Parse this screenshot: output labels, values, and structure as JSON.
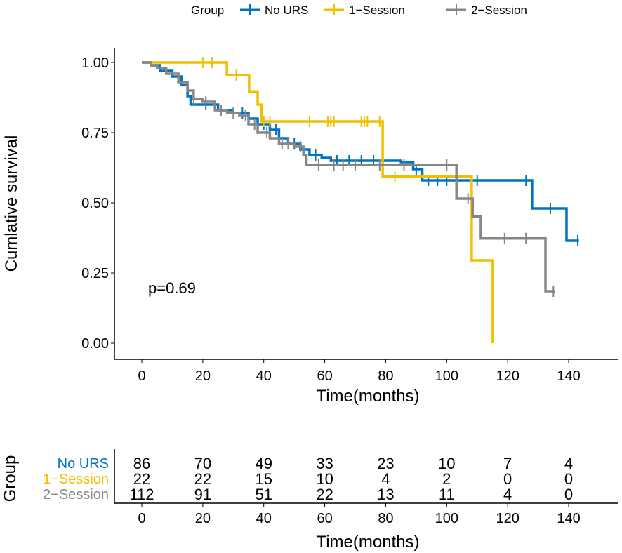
{
  "chart_data": {
    "type": "line",
    "subtype": "kaplan-meier",
    "xlabel": "Time(months)",
    "ylabel": "Cumlative survival",
    "xlim": [
      -8,
      155
    ],
    "ylim": [
      -0.05,
      1.05
    ],
    "xticks": [
      0,
      20,
      40,
      60,
      80,
      100,
      120,
      140
    ],
    "yticks": [
      "0.00",
      "0.25",
      "0.50",
      "0.75",
      "1.00"
    ],
    "ytick_values": [
      0,
      0.25,
      0.5,
      0.75,
      1.0
    ],
    "annotation": "p=0.69",
    "legend": {
      "title": "Group",
      "placement": "top"
    },
    "series": [
      {
        "name": "No URS",
        "color": "#0073C2",
        "steps": [
          [
            0,
            1
          ],
          [
            3,
            0.99
          ],
          [
            6,
            0.97
          ],
          [
            10,
            0.95
          ],
          [
            13,
            0.92
          ],
          [
            15,
            0.88
          ],
          [
            16,
            0.85
          ],
          [
            25,
            0.83
          ],
          [
            30,
            0.82
          ],
          [
            35,
            0.8
          ],
          [
            38,
            0.78
          ],
          [
            42,
            0.76
          ],
          [
            45,
            0.73
          ],
          [
            48,
            0.71
          ],
          [
            52,
            0.69
          ],
          [
            55,
            0.67
          ],
          [
            59,
            0.66
          ],
          [
            62,
            0.65
          ],
          [
            85,
            0.645
          ],
          [
            89,
            0.62
          ],
          [
            92,
            0.58
          ],
          [
            128,
            0.48
          ],
          [
            139.3,
            0.365
          ]
        ],
        "end": 143.4,
        "censored": [
          21,
          33,
          40,
          44,
          50,
          57,
          64,
          68,
          72,
          76,
          79,
          90,
          94,
          97,
          100,
          110,
          126,
          134,
          143
        ]
      },
      {
        "name": "1−Session",
        "color": "#EFC000",
        "steps": [
          [
            0,
            1
          ],
          [
            27.9,
            0.955
          ],
          [
            35.2,
            0.897
          ],
          [
            38,
            0.85
          ],
          [
            39.2,
            0.79
          ],
          [
            79,
            0.593
          ],
          [
            108.2,
            0.295
          ],
          [
            115.1,
            0.0
          ]
        ],
        "end": 115.1,
        "censored": [
          20,
          23,
          31,
          40,
          42,
          55,
          61,
          62,
          63,
          72,
          73,
          74,
          78,
          83
        ]
      },
      {
        "name": "2−Session",
        "color": "#868686",
        "steps": [
          [
            0,
            1
          ],
          [
            3,
            0.99
          ],
          [
            5,
            0.98
          ],
          [
            8,
            0.96
          ],
          [
            12,
            0.93
          ],
          [
            15,
            0.9
          ],
          [
            17,
            0.87
          ],
          [
            20,
            0.86
          ],
          [
            24,
            0.83
          ],
          [
            28,
            0.82
          ],
          [
            32,
            0.81
          ],
          [
            35,
            0.78
          ],
          [
            38,
            0.75
          ],
          [
            42,
            0.73
          ],
          [
            45,
            0.71
          ],
          [
            50,
            0.7
          ],
          [
            53,
            0.67
          ],
          [
            54,
            0.635
          ],
          [
            103.2,
            0.515
          ],
          [
            108.5,
            0.452
          ],
          [
            111.2,
            0.373
          ],
          [
            132.4,
            0.185
          ]
        ],
        "end": 135.4,
        "censored": [
          17,
          21,
          26,
          30,
          34,
          37,
          41,
          46,
          48,
          52,
          58,
          63,
          66,
          70,
          78,
          86,
          100,
          107,
          119,
          126,
          135
        ]
      }
    ],
    "risk_table": {
      "title": "Group",
      "xlabel": "Time(months)",
      "rows": [
        {
          "name": "No URS",
          "values": [
            "86",
            "70",
            "49",
            "33",
            "23",
            "10",
            "7",
            "4"
          ]
        },
        {
          "name": "1−Session",
          "values": [
            "22",
            "22",
            "15",
            "10",
            "4",
            "2",
            "0",
            "0"
          ]
        },
        {
          "name": "2−Session",
          "values": [
            "112",
            "91",
            "51",
            "22",
            "13",
            "11",
            "4",
            "0"
          ]
        }
      ]
    }
  }
}
